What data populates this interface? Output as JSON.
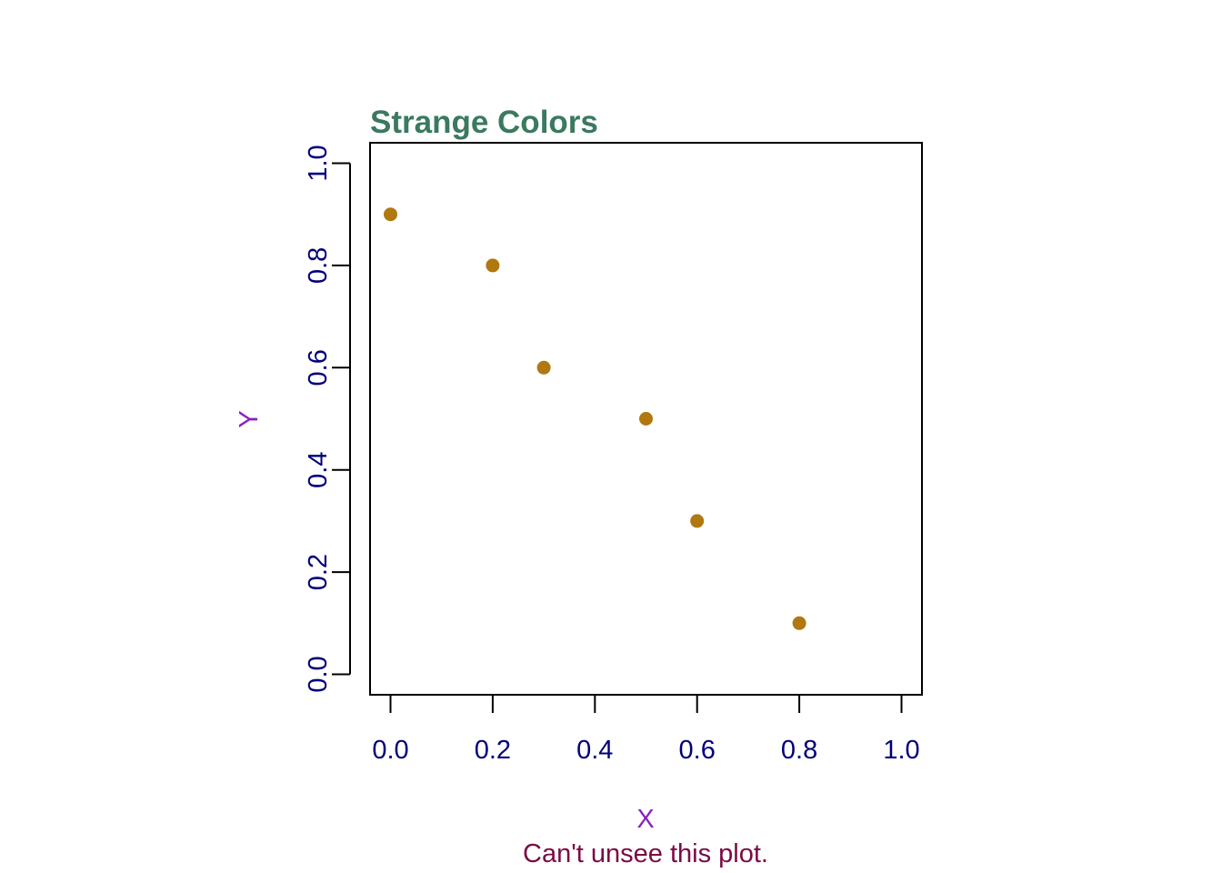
{
  "chart_data": {
    "type": "scatter",
    "title": "Strange Colors",
    "subtitle": "Can't unsee this plot.",
    "xlabel": "X",
    "ylabel": "Y",
    "xlim": [
      0,
      1
    ],
    "ylim": [
      0,
      1
    ],
    "x_ticks": [
      "0.0",
      "0.2",
      "0.4",
      "0.6",
      "0.8",
      "1.0"
    ],
    "y_ticks": [
      "0.0",
      "0.2",
      "0.4",
      "0.6",
      "0.8",
      "1.0"
    ],
    "grid": false,
    "points": [
      {
        "x": 0.0,
        "y": 0.9
      },
      {
        "x": 0.2,
        "y": 0.8
      },
      {
        "x": 0.3,
        "y": 0.6
      },
      {
        "x": 0.5,
        "y": 0.5
      },
      {
        "x": 0.6,
        "y": 0.3
      },
      {
        "x": 0.8,
        "y": 0.1
      }
    ],
    "colors": {
      "title": "#3a7a5f",
      "subtitle": "#7a0a45",
      "axis_title": "#8a1fc0",
      "tick_label": "#00007a",
      "point": "#b0780f",
      "frame": "#000000"
    }
  }
}
